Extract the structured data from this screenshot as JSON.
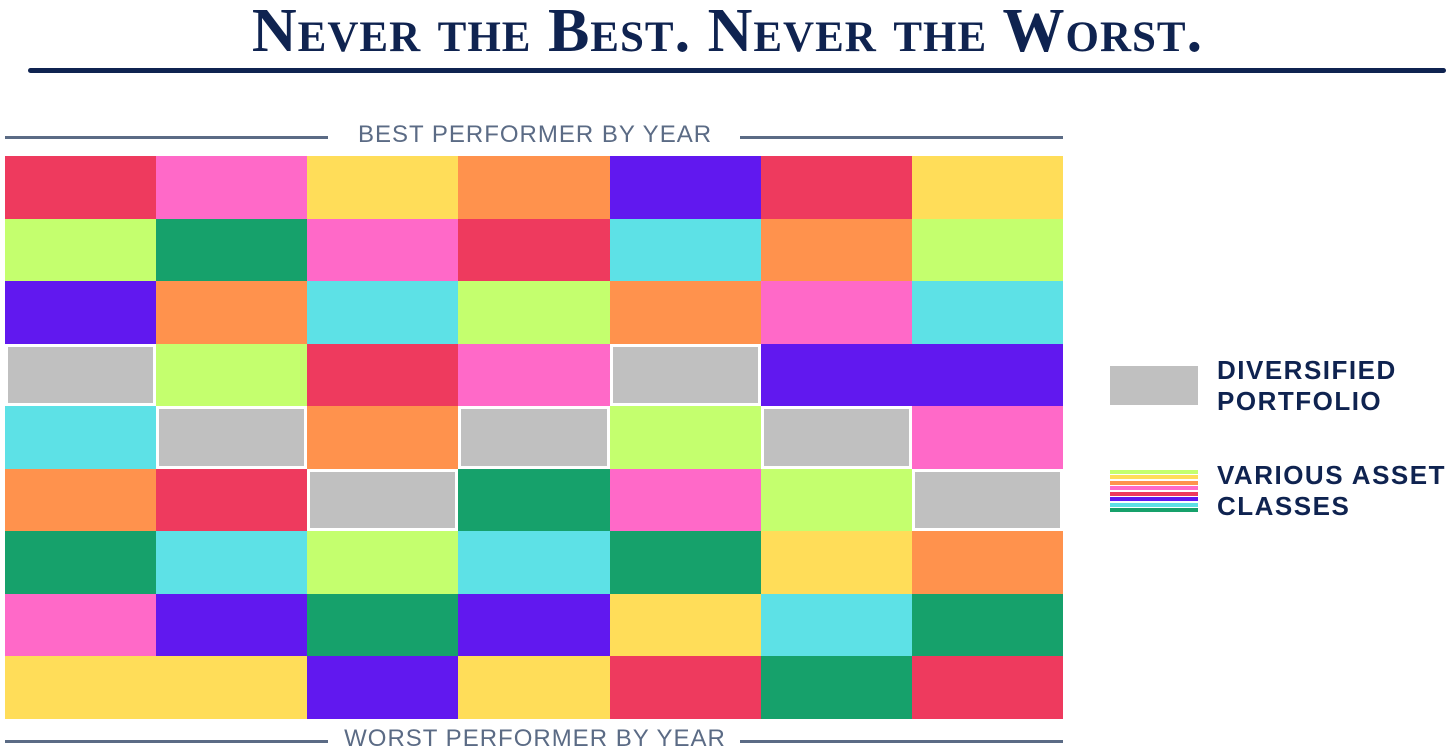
{
  "chart_data": {
    "type": "heatmap",
    "title": "Never the Best. Never the Worst.",
    "top_label": "BEST PERFORMER BY YEAR",
    "bottom_label": "WORST PERFORMER BY YEAR",
    "rows": [
      [
        "red",
        "pink",
        "yellow",
        "orange",
        "purple",
        "red",
        "yellow"
      ],
      [
        "lime",
        "green",
        "pink",
        "red",
        "cyan",
        "orange",
        "lime"
      ],
      [
        "purple",
        "orange",
        "cyan",
        "lime",
        "orange",
        "pink",
        "cyan"
      ],
      [
        "portfolio",
        "lime",
        "red",
        "pink",
        "portfolio",
        "purple",
        "purple"
      ],
      [
        "cyan",
        "portfolio",
        "orange",
        "portfolio",
        "lime",
        "portfolio",
        "pink"
      ],
      [
        "orange",
        "red",
        "portfolio",
        "green",
        "pink",
        "lime",
        "portfolio"
      ],
      [
        "green",
        "cyan",
        "lime",
        "cyan",
        "green",
        "yellow",
        "orange"
      ],
      [
        "pink",
        "purple",
        "green",
        "purple",
        "yellow",
        "cyan",
        "green"
      ],
      [
        "yellow",
        "yellow",
        "purple",
        "yellow",
        "red",
        "green",
        "red"
      ]
    ],
    "legend": [
      {
        "key": "portfolio",
        "label_lines": [
          "DIVERSIFIED",
          "PORTFOLIO"
        ]
      },
      {
        "key": "assets",
        "label_lines": [
          "VARIOUS ASSET",
          "CLASSES"
        ]
      }
    ]
  },
  "colors": {
    "red": "#ee3a5e",
    "pink": "#ff69c8",
    "yellow": "#ffdd59",
    "orange": "#ff924d",
    "purple": "#6118ef",
    "lime": "#c4ff6e",
    "green": "#16a16b",
    "cyan": "#5de1e6",
    "portfolio": "#c0c0c0",
    "title": "#0f2350",
    "axis": "#5b6b85"
  },
  "legend_stripe_colors": [
    "lime",
    "yellow",
    "orange",
    "pink",
    "red",
    "purple",
    "cyan",
    "green"
  ]
}
